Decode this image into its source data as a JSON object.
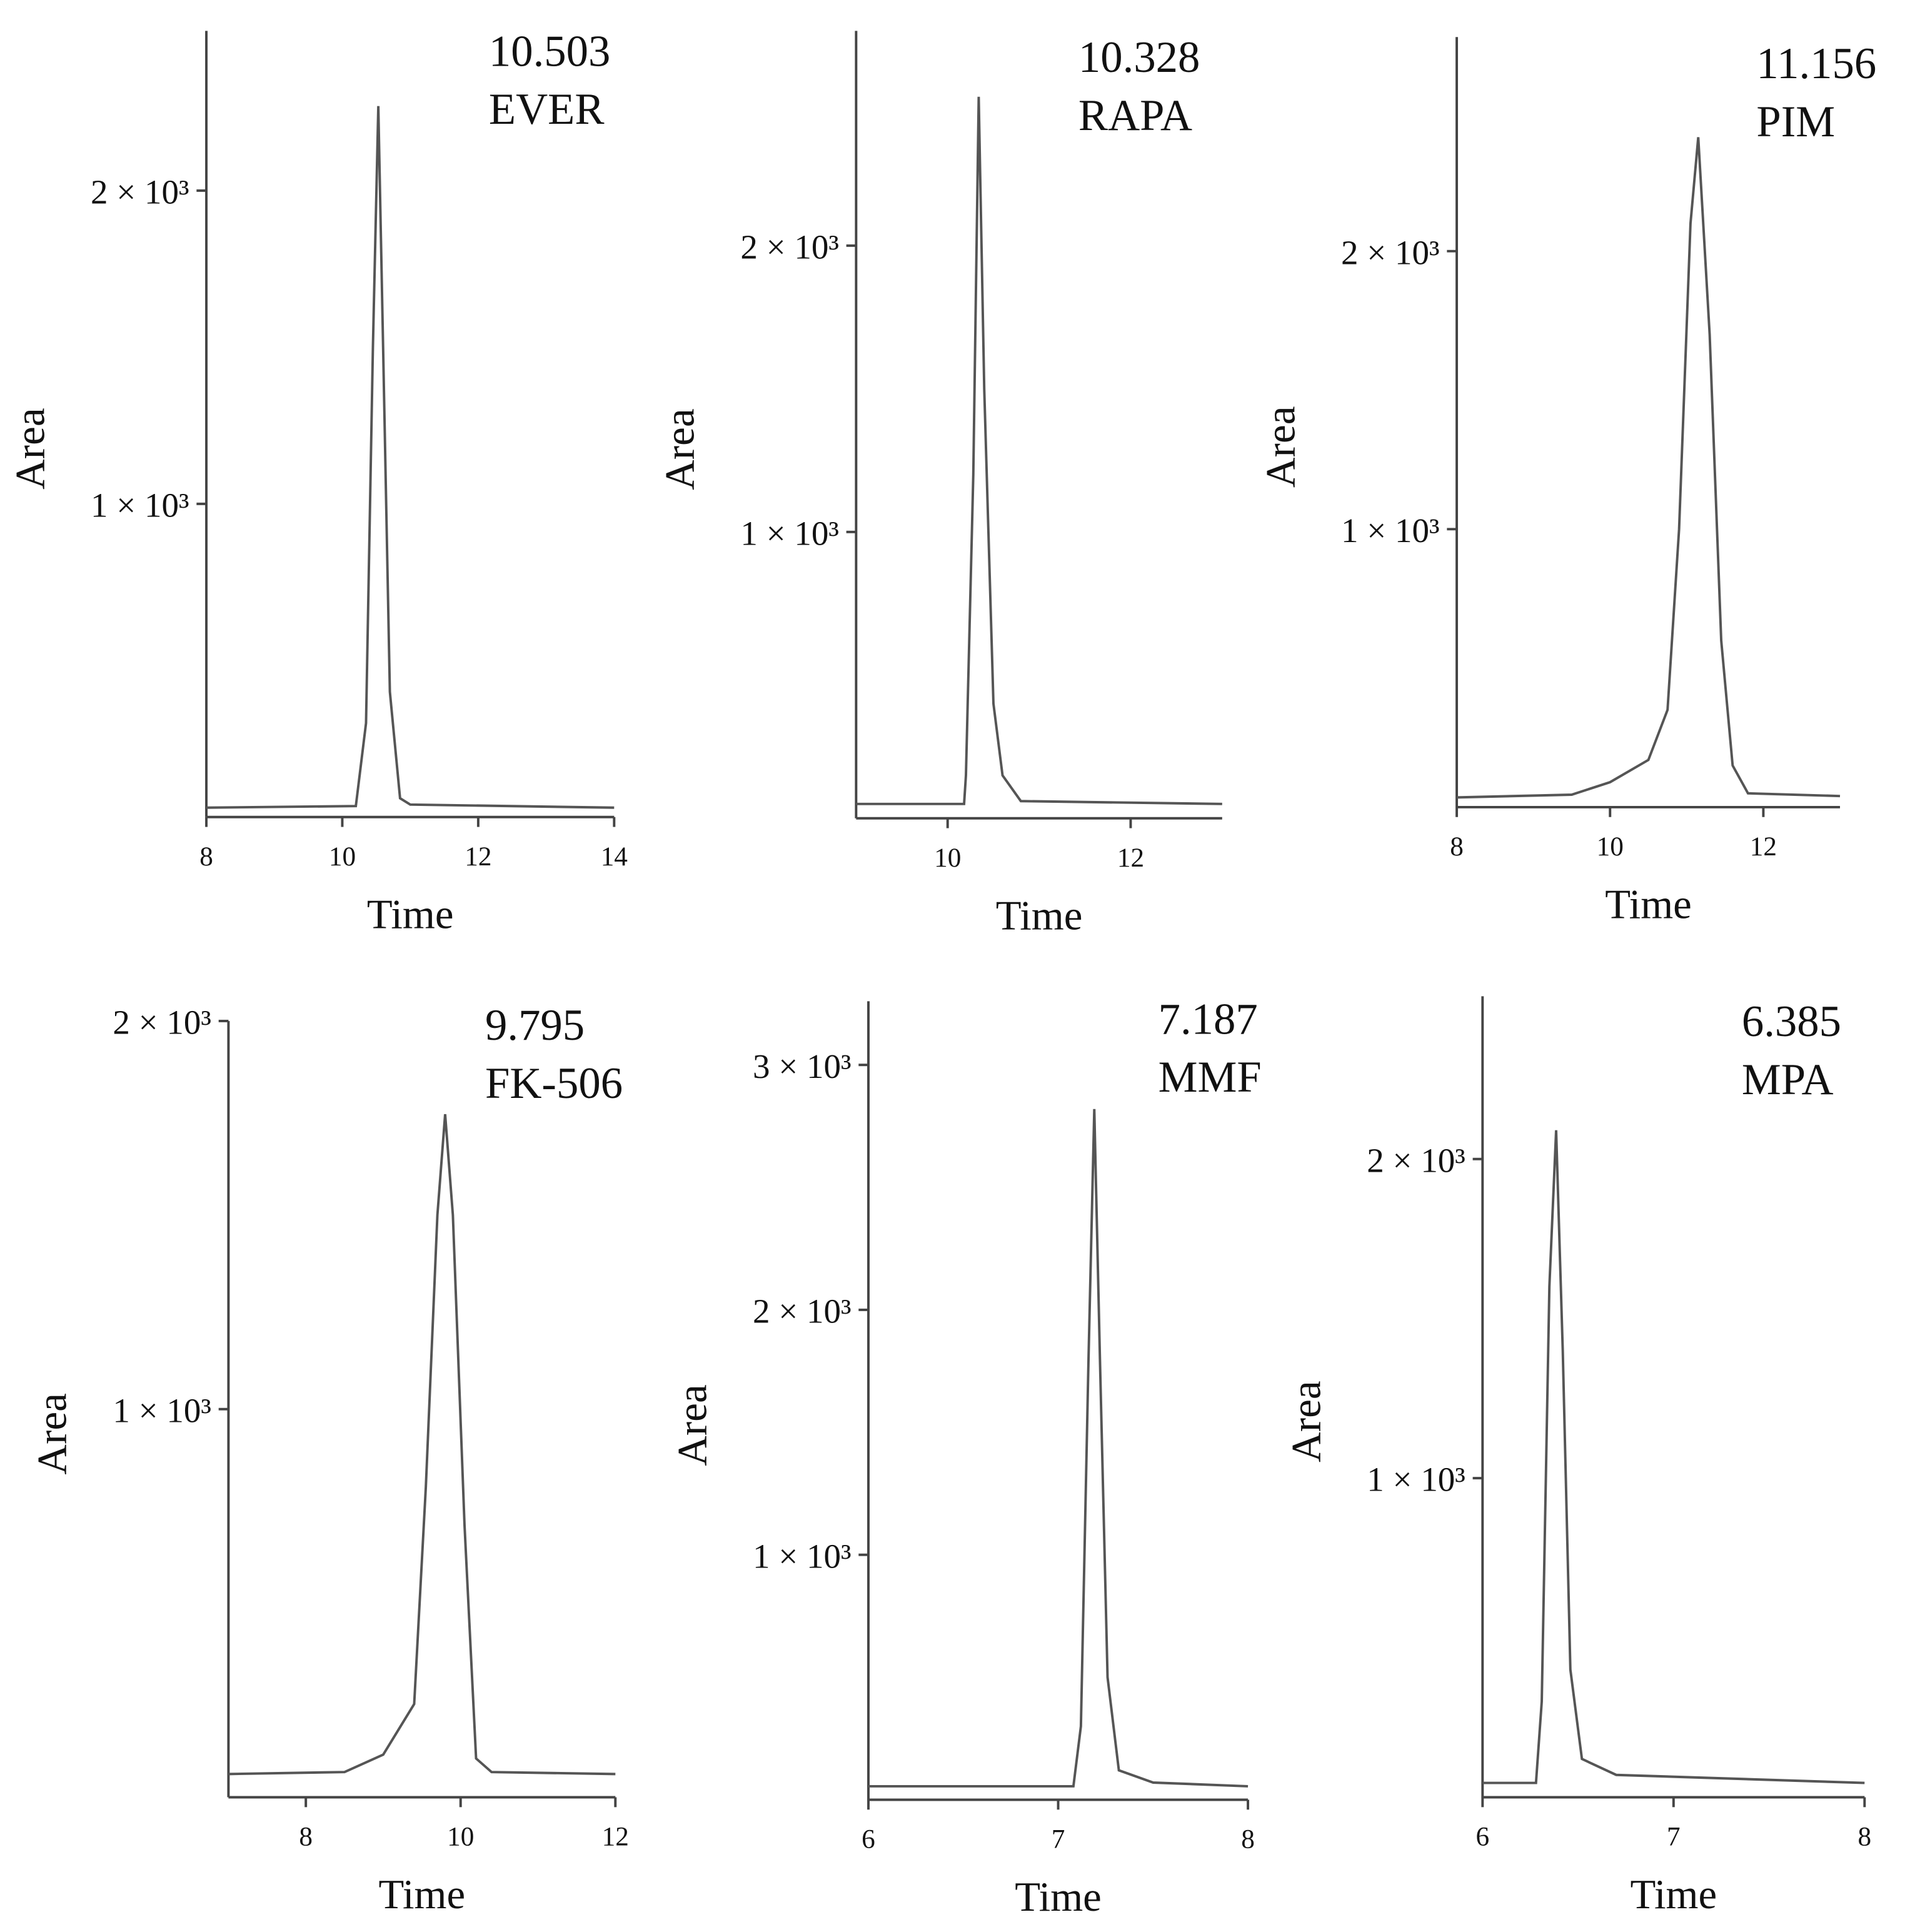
{
  "chart_data": [
    {
      "type": "line",
      "annotations": [
        "10.503",
        "EVER"
      ],
      "xlabel": "Time",
      "ylabel": "Area",
      "color": "#555555",
      "x": [
        8,
        10.2,
        10.35,
        10.45,
        10.53,
        10.6,
        10.7,
        10.85,
        11,
        14
      ],
      "values": [
        30,
        35,
        300,
        1500,
        2270,
        1500,
        400,
        60,
        40,
        30
      ],
      "xlim": [
        8,
        14
      ],
      "xticks": [
        8,
        10,
        12,
        14
      ],
      "ylim": [
        0,
        2510
      ],
      "yticks": [
        {
          "value": 1000,
          "label": "1 × 10³"
        },
        {
          "value": 2000,
          "label": "2 × 10³"
        }
      ]
    },
    {
      "type": "line",
      "annotations": [
        "10.328",
        "RAPA"
      ],
      "xlabel": "Time",
      "ylabel": "Area",
      "color": "#555555",
      "x": [
        9,
        10.18,
        10.2,
        10.28,
        10.34,
        10.4,
        10.5,
        10.6,
        10.8,
        13
      ],
      "values": [
        50,
        50,
        150,
        1200,
        2520,
        1500,
        400,
        150,
        60,
        50
      ],
      "xlim": [
        9,
        13
      ],
      "xticks": [
        10,
        12
      ],
      "ylim": [
        0,
        2750
      ],
      "yticks": [
        {
          "value": 1000,
          "label": "1 × 10³"
        },
        {
          "value": 2000,
          "label": "2 × 10³"
        }
      ]
    },
    {
      "type": "line",
      "annotations": [
        "11.156",
        "PIM"
      ],
      "xlabel": "Time",
      "ylabel": "Area",
      "color": "#555555",
      "x": [
        8,
        9.5,
        10,
        10.5,
        10.75,
        10.9,
        11.05,
        11.15,
        11.3,
        11.45,
        11.6,
        11.8,
        13
      ],
      "values": [
        35,
        45,
        90,
        170,
        350,
        1000,
        2100,
        2410,
        1700,
        600,
        150,
        50,
        40
      ],
      "xlim": [
        8,
        13
      ],
      "xticks": [
        8,
        10,
        12
      ],
      "ylim": [
        0,
        2770
      ],
      "yticks": [
        {
          "value": 1000,
          "label": "1 × 10³"
        },
        {
          "value": 2000,
          "label": "2 × 10³"
        }
      ]
    },
    {
      "type": "line",
      "annotations": [
        "9.795",
        "FK-506"
      ],
      "xlabel": "Time",
      "ylabel": "Area",
      "color": "#555555",
      "x": [
        7,
        8.5,
        9,
        9.4,
        9.55,
        9.7,
        9.8,
        9.9,
        10.05,
        10.2,
        10.4,
        12
      ],
      "values": [
        60,
        65,
        110,
        240,
        800,
        1500,
        1760,
        1500,
        700,
        100,
        65,
        60
      ],
      "xlim": [
        7,
        12
      ],
      "xticks": [
        8,
        10,
        12
      ],
      "ylim": [
        0,
        2000
      ],
      "yticks": [
        {
          "value": 1000,
          "label": "1 × 10³"
        },
        {
          "value": 2000,
          "label": "2 × 10³"
        }
      ]
    },
    {
      "type": "line",
      "annotations": [
        "7.187",
        "MMF"
      ],
      "xlabel": "Time",
      "ylabel": "Area",
      "color": "#555555",
      "x": [
        6,
        7.08,
        7.12,
        7.16,
        7.19,
        7.22,
        7.26,
        7.32,
        7.5,
        8
      ],
      "values": [
        55,
        55,
        300,
        1800,
        2820,
        1800,
        500,
        120,
        70,
        55
      ],
      "xlim": [
        6,
        8
      ],
      "xticks": [
        6,
        7,
        8
      ],
      "ylim": [
        0,
        3260
      ],
      "yticks": [
        {
          "value": 1000,
          "label": "1 × 10³"
        },
        {
          "value": 2000,
          "label": "2 × 10³"
        },
        {
          "value": 3000,
          "label": "3 × 10³"
        }
      ]
    },
    {
      "type": "line",
      "annotations": [
        "6.385",
        "MPA"
      ],
      "xlabel": "Time",
      "ylabel": "Area",
      "color": "#555555",
      "x": [
        6,
        6.28,
        6.31,
        6.35,
        6.385,
        6.42,
        6.46,
        6.52,
        6.7,
        8
      ],
      "values": [
        45,
        45,
        300,
        1600,
        2090,
        1400,
        400,
        120,
        70,
        45
      ],
      "xlim": [
        6,
        8
      ],
      "xticks": [
        6,
        7,
        8
      ],
      "ylim": [
        0,
        2510
      ],
      "yticks": [
        {
          "value": 1000,
          "label": "1 × 10³"
        },
        {
          "value": 2000,
          "label": "2 × 10³"
        }
      ]
    }
  ]
}
